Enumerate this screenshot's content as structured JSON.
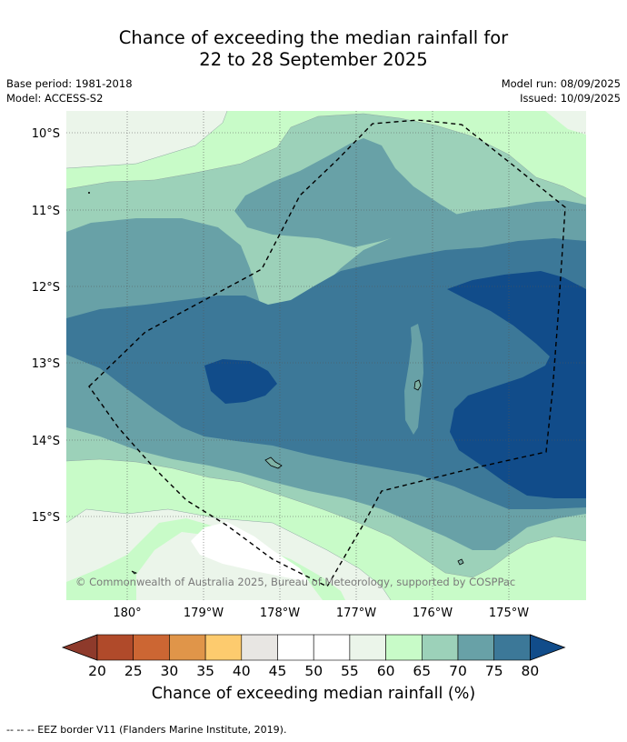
{
  "header": {
    "title_line1": "Chance of exceeding the median rainfall for",
    "title_line2": "22 to 28 September 2025",
    "base_period": "Base period: 1981-2018",
    "model": "Model: ACCESS-S2",
    "model_run": "Model run: 08/09/2025",
    "issued": "Issued: 10/09/2025"
  },
  "map": {
    "lon_labels": [
      "180°",
      "179°W",
      "178°W",
      "177°W",
      "176°W",
      "175°W"
    ],
    "lat_labels": [
      "10°S",
      "11°S",
      "12°S",
      "13°S",
      "14°S",
      "15°S"
    ],
    "copyright": "© Commonwealth of Australia 2025, Bureau of Meteorology, supported by COSPPac",
    "colors": {
      "c40_45": "#e8e6e3",
      "c45_50": "#ffffff",
      "c55_60": "#ebf5ea",
      "c60_65": "#c8fbc8",
      "c65_70": "#9cd1b9",
      "c70_75": "#68a1a7",
      "c75_80": "#3c7898",
      "c80": "#114c8a",
      "land": "#7fb3a6"
    }
  },
  "colorbar": {
    "ticks": [
      "20",
      "25",
      "30",
      "35",
      "40",
      "45",
      "50",
      "55",
      "60",
      "65",
      "70",
      "75",
      "80"
    ],
    "colors": [
      "#8e3a2b",
      "#b04a2a",
      "#cc6633",
      "#e09549",
      "#fdcb6e",
      "#e8e6e3",
      "#ffffff",
      "#ffffff",
      "#ebf5ea",
      "#c8fbc8",
      "#9cd1b9",
      "#68a1a7",
      "#3c7898",
      "#114c8a"
    ],
    "label": "Chance of exceeding median rainfall (%)"
  },
  "footer": {
    "legend": "--  --  -- EEZ border V11 (Flanders Marine Institute, 2019)."
  }
}
